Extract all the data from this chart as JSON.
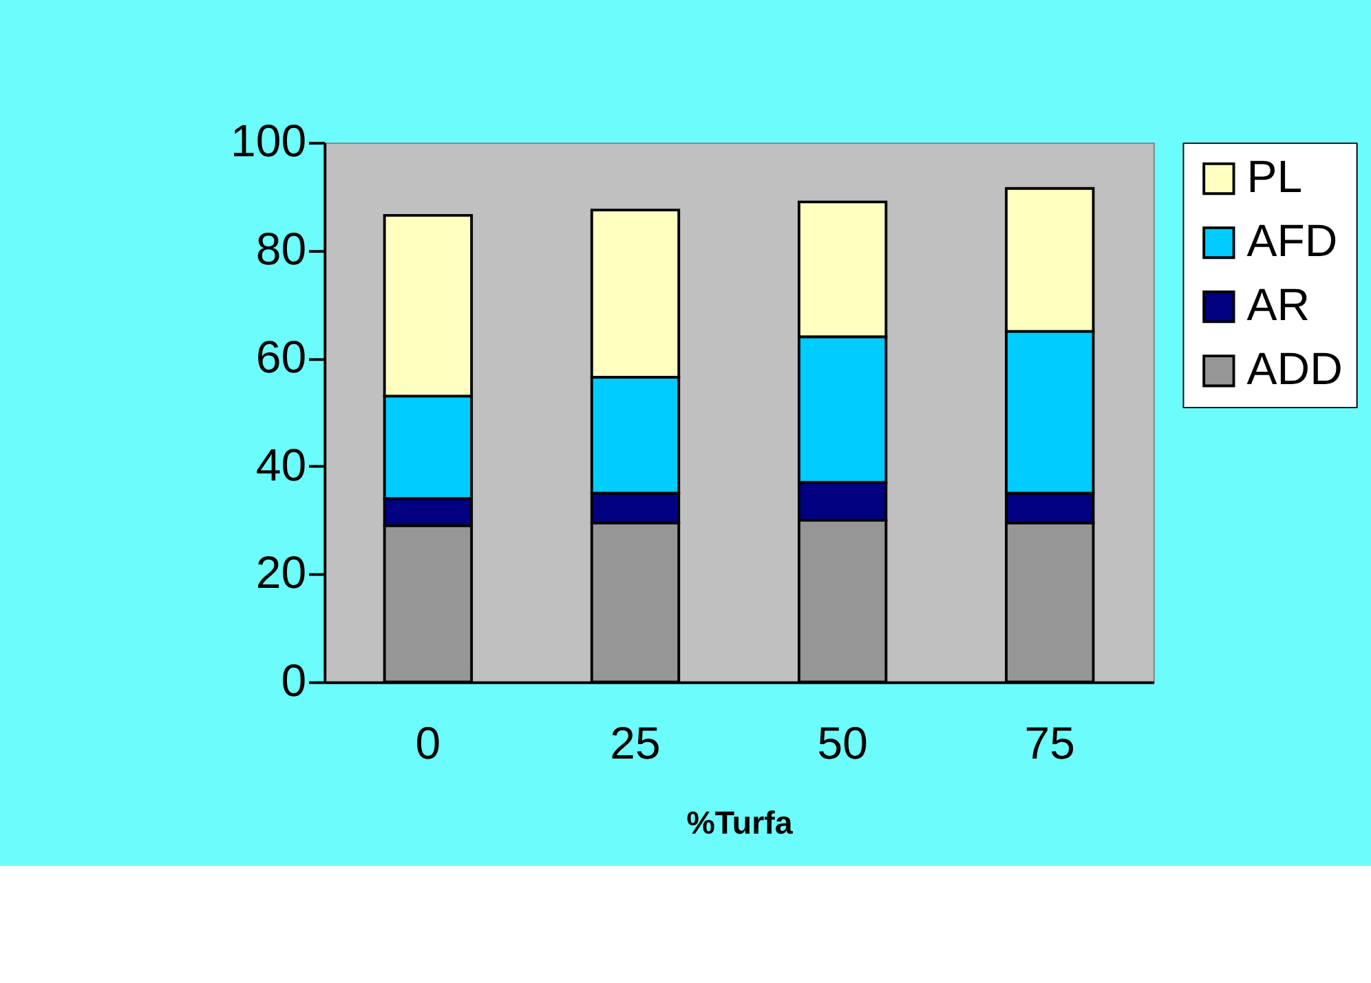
{
  "chart_data": {
    "type": "bar",
    "stacked": true,
    "xlabel": "%Turfa",
    "categories": [
      "0",
      "25",
      "50",
      "75"
    ],
    "series": [
      {
        "name": "ADD",
        "color": "#969696",
        "values": [
          29,
          29.5,
          30,
          29.5
        ]
      },
      {
        "name": "AR",
        "color": "#000080",
        "values": [
          5,
          5.5,
          7,
          5.5
        ]
      },
      {
        "name": "AFD",
        "color": "#00ccff",
        "values": [
          19,
          21.5,
          27,
          30
        ]
      },
      {
        "name": "PL",
        "color": "#ffffc0",
        "values": [
          33.5,
          31,
          25,
          26.5
        ]
      }
    ],
    "ylim": [
      0,
      100
    ],
    "yticks": [
      0,
      20,
      40,
      60,
      80,
      100
    ],
    "grid": false,
    "legend": "right"
  }
}
